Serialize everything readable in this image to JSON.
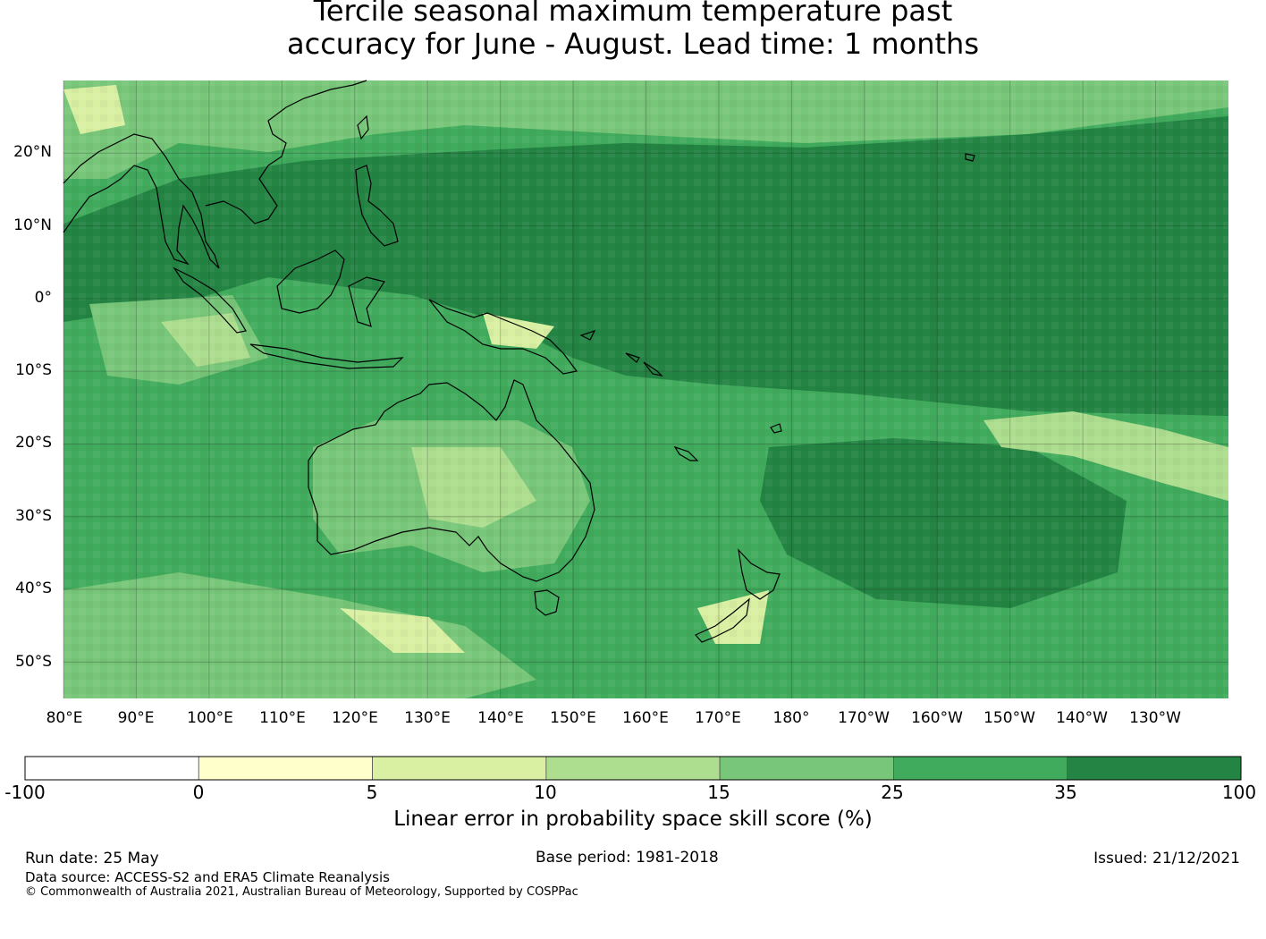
{
  "title": {
    "line1": "Tercile seasonal maximum temperature past",
    "line2": "accuracy for June - August. Lead time: 1 months"
  },
  "map": {
    "lon_labels": [
      "80°E",
      "90°E",
      "100°E",
      "110°E",
      "120°E",
      "130°E",
      "140°E",
      "150°E",
      "160°E",
      "170°E",
      "180°",
      "170°W",
      "160°W",
      "150°W",
      "140°W",
      "130°W"
    ],
    "lat_labels": [
      "20°N",
      "10°N",
      "0°",
      "10°S",
      "20°S",
      "30°S",
      "40°S",
      "50°S"
    ],
    "lon_range": [
      80,
      240
    ],
    "lat_range": [
      -55,
      30
    ],
    "gridlines": true,
    "regions": [
      "Australia",
      "Papua New Guinea",
      "New Zealand",
      "Indonesia",
      "Philippines",
      "Borneo",
      "Sumatra",
      "Hawaii"
    ]
  },
  "colorbar": {
    "label": "Linear error in probability space skill score (%)",
    "ticks": [
      "-100",
      "0",
      "5",
      "10",
      "15",
      "25",
      "35",
      "100"
    ],
    "colors": [
      "#ffffff",
      "#ffffcc",
      "#d9f0a3",
      "#addd8e",
      "#78c679",
      "#41ab5d",
      "#238443"
    ]
  },
  "footer": {
    "run_date": "Run date: 25 May",
    "base_period": "Base period: 1981-2018",
    "issued": "Issued: 21/12/2021",
    "data_source": "Data source: ACCESS-S2 and ERA5 Climate Reanalysis",
    "copyright": "© Commonwealth of Australia 2021, Australian Bureau of Meteorology, Supported by COSPPac"
  }
}
